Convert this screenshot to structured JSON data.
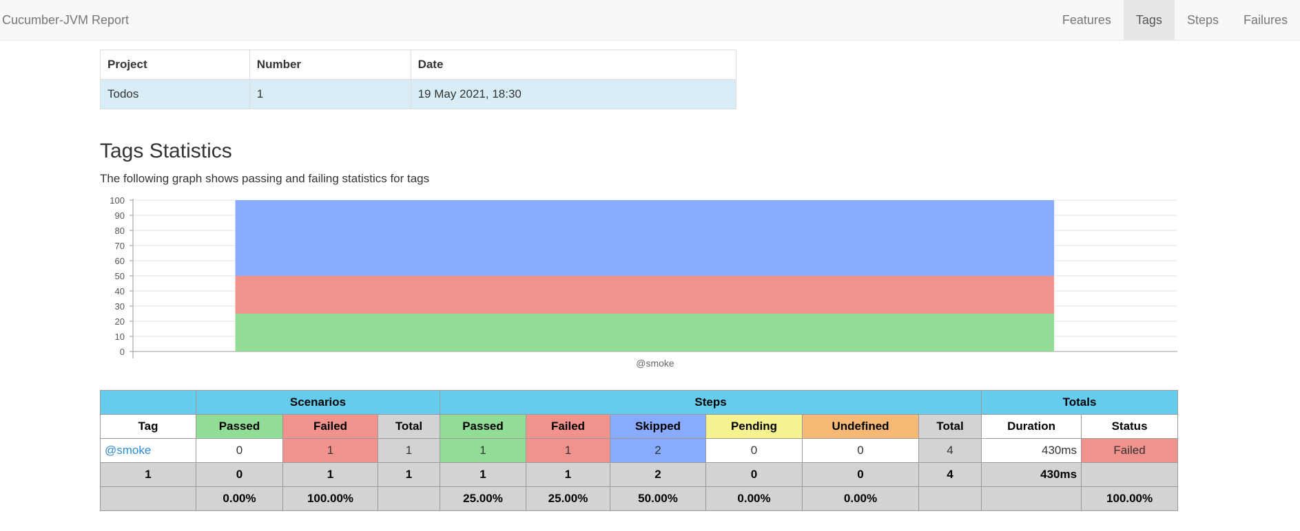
{
  "navbar": {
    "brand": "Cucumber-JVM Report",
    "items": [
      {
        "label": "Features"
      },
      {
        "label": "Tags"
      },
      {
        "label": "Steps"
      },
      {
        "label": "Failures"
      }
    ]
  },
  "info_table": {
    "headers": [
      "Project",
      "Number",
      "Date"
    ],
    "values": [
      "Todos",
      "1",
      "19 May 2021, 18:30"
    ]
  },
  "heading": "Tags Statistics",
  "description": "The following graph shows passing and failing statistics for tags",
  "chart_data": {
    "type": "bar",
    "stacked": true,
    "categories": [
      "@smoke"
    ],
    "series": [
      {
        "values": [
          25
        ],
        "color": "#92dd96"
      },
      {
        "values": [
          25
        ],
        "color": "#f2928c"
      },
      {
        "values": [
          50
        ],
        "color": "#88aaff"
      }
    ],
    "ylim": [
      0,
      100
    ],
    "yticks": [
      "0",
      "10",
      "20",
      "30",
      "40",
      "50",
      "60",
      "70",
      "80",
      "90",
      "100"
    ],
    "grid": true
  },
  "stats_table": {
    "groups": {
      "scenarios": "Scenarios",
      "steps": "Steps",
      "totals": "Totals"
    },
    "headers": {
      "tag": "Tag",
      "sc_passed": "Passed",
      "sc_failed": "Failed",
      "sc_total": "Total",
      "st_passed": "Passed",
      "st_failed": "Failed",
      "st_skipped": "Skipped",
      "st_pending": "Pending",
      "st_undefined": "Undefined",
      "st_total": "Total",
      "duration": "Duration",
      "status": "Status"
    },
    "row": {
      "tag": "@smoke",
      "sc_passed": "0",
      "sc_failed": "1",
      "sc_total": "1",
      "st_passed": "1",
      "st_failed": "1",
      "st_skipped": "2",
      "st_pending": "0",
      "st_undefined": "0",
      "st_total": "4",
      "duration": "430ms",
      "status": "Failed"
    },
    "totals": {
      "tag": "1",
      "sc_passed": "0",
      "sc_failed": "1",
      "sc_total": "1",
      "st_passed": "1",
      "st_failed": "1",
      "st_skipped": "2",
      "st_pending": "0",
      "st_undefined": "0",
      "st_total": "4",
      "duration": "430ms",
      "status": ""
    },
    "percentages": {
      "sc_passed": "0.00%",
      "sc_failed": "100.00%",
      "st_passed": "25.00%",
      "st_failed": "25.00%",
      "st_skipped": "50.00%",
      "st_pending": "0.00%",
      "st_undefined": "0.00%",
      "status": "100.00%"
    }
  }
}
